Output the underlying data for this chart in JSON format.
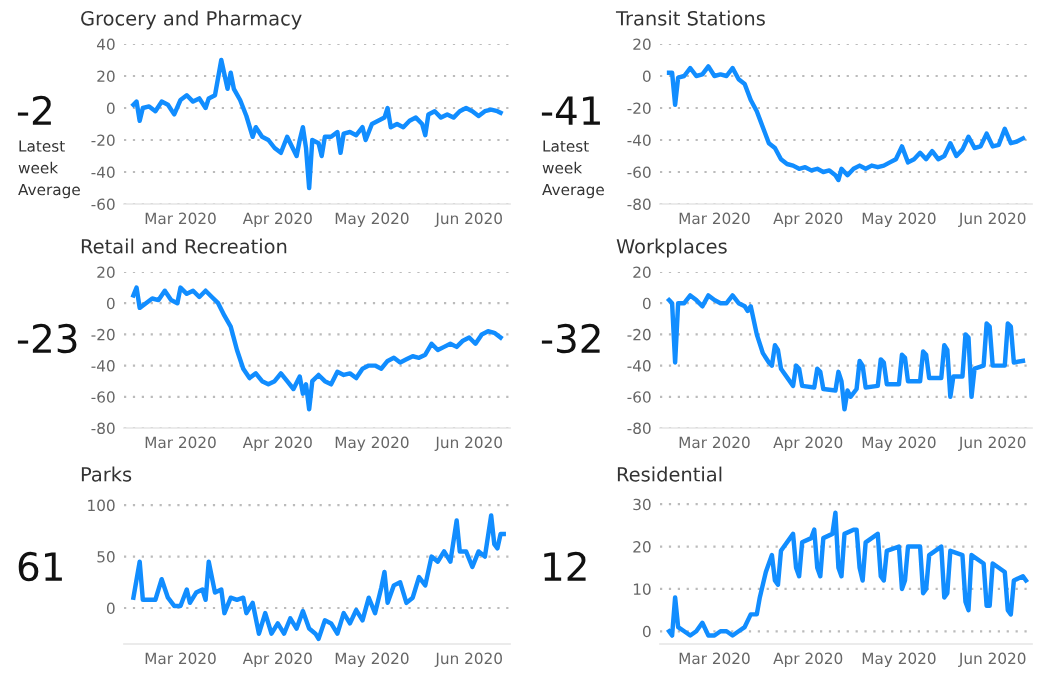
{
  "chart_data": [
    {
      "type": "line",
      "title": "Grocery and Pharmacy",
      "annotations": [
        "-2",
        "Latest week Average"
      ],
      "grid": "y",
      "legend": false,
      "marker": "none",
      "line_style": "solid",
      "xlim": [
        "2020-02-12",
        "2020-06-14"
      ],
      "xticks": [
        {
          "value": "2020-03-01",
          "label": "Mar 2020"
        },
        {
          "value": "2020-04-01",
          "label": "Apr 2020"
        },
        {
          "value": "2020-05-01",
          "label": "May 2020"
        },
        {
          "value": "2020-06-01",
          "label": "Jun 2020"
        }
      ],
      "ylim": [
        -60,
        40
      ],
      "yticks": [
        -60,
        -40,
        -20,
        0,
        20,
        40
      ],
      "series": [
        {
          "color": "#118dff",
          "x": [
            "2020-02-15",
            "2020-02-16",
            "2020-02-17",
            "2020-02-18",
            "2020-02-20",
            "2020-02-22",
            "2020-02-24",
            "2020-02-26",
            "2020-02-28",
            "2020-03-01",
            "2020-03-03",
            "2020-03-05",
            "2020-03-07",
            "2020-03-09",
            "2020-03-10",
            "2020-03-12",
            "2020-03-14",
            "2020-03-16",
            "2020-03-17",
            "2020-03-18",
            "2020-03-20",
            "2020-03-22",
            "2020-03-24",
            "2020-03-25",
            "2020-03-27",
            "2020-03-29",
            "2020-03-31",
            "2020-04-02",
            "2020-04-04",
            "2020-04-05",
            "2020-04-07",
            "2020-04-08",
            "2020-04-09",
            "2020-04-10",
            "2020-04-11",
            "2020-04-12",
            "2020-04-14",
            "2020-04-15",
            "2020-04-16",
            "2020-04-18",
            "2020-04-20",
            "2020-04-21",
            "2020-04-22",
            "2020-04-24",
            "2020-04-26",
            "2020-04-28",
            "2020-04-29",
            "2020-05-01",
            "2020-05-03",
            "2020-05-05",
            "2020-05-06",
            "2020-05-07",
            "2020-05-09",
            "2020-05-11",
            "2020-05-13",
            "2020-05-15",
            "2020-05-17",
            "2020-05-18",
            "2020-05-19",
            "2020-05-21",
            "2020-05-23",
            "2020-05-25",
            "2020-05-27",
            "2020-05-29",
            "2020-05-31",
            "2020-06-02",
            "2020-06-04",
            "2020-06-06",
            "2020-06-08",
            "2020-06-10",
            "2020-06-11"
          ],
          "values": [
            2,
            4,
            -8,
            0,
            1,
            -2,
            4,
            2,
            -4,
            5,
            8,
            4,
            6,
            0,
            6,
            8,
            30,
            12,
            22,
            12,
            5,
            -5,
            -18,
            -12,
            -18,
            -20,
            -25,
            -28,
            -18,
            -22,
            -30,
            -20,
            -12,
            -25,
            -50,
            -20,
            -22,
            -30,
            -18,
            -18,
            -15,
            -28,
            -16,
            -15,
            -17,
            -12,
            -20,
            -10,
            -8,
            -6,
            0,
            -12,
            -10,
            -12,
            -8,
            -6,
            -10,
            -17,
            -4,
            -2,
            -6,
            -4,
            -6,
            -2,
            0,
            -2,
            -5,
            -2,
            -1,
            -2,
            -3
          ]
        }
      ]
    },
    {
      "type": "line",
      "title": "Transit Stations",
      "annotations": [
        "-41",
        "Latest week Average"
      ],
      "grid": "y",
      "legend": false,
      "marker": "none",
      "line_style": "solid",
      "xlim": [
        "2020-02-12",
        "2020-06-14"
      ],
      "xticks": [
        {
          "value": "2020-03-01",
          "label": "Mar 2020"
        },
        {
          "value": "2020-04-01",
          "label": "Apr 2020"
        },
        {
          "value": "2020-05-01",
          "label": "May 2020"
        },
        {
          "value": "2020-06-01",
          "label": "Jun 2020"
        }
      ],
      "ylim": [
        -80,
        20
      ],
      "yticks": [
        -80,
        -60,
        -40,
        -20,
        0,
        20
      ],
      "series": [
        {
          "color": "#118dff",
          "x": [
            "2020-02-15",
            "2020-02-16",
            "2020-02-17",
            "2020-02-18",
            "2020-02-20",
            "2020-02-22",
            "2020-02-24",
            "2020-02-26",
            "2020-02-28",
            "2020-03-01",
            "2020-03-03",
            "2020-03-05",
            "2020-03-07",
            "2020-03-09",
            "2020-03-11",
            "2020-03-13",
            "2020-03-15",
            "2020-03-17",
            "2020-03-19",
            "2020-03-21",
            "2020-03-23",
            "2020-03-25",
            "2020-03-27",
            "2020-03-29",
            "2020-03-31",
            "2020-04-02",
            "2020-04-04",
            "2020-04-06",
            "2020-04-08",
            "2020-04-10",
            "2020-04-11",
            "2020-04-12",
            "2020-04-14",
            "2020-04-16",
            "2020-04-18",
            "2020-04-20",
            "2020-04-22",
            "2020-04-24",
            "2020-04-26",
            "2020-04-28",
            "2020-04-30",
            "2020-05-02",
            "2020-05-04",
            "2020-05-06",
            "2020-05-08",
            "2020-05-10",
            "2020-05-12",
            "2020-05-14",
            "2020-05-16",
            "2020-05-18",
            "2020-05-20",
            "2020-05-22",
            "2020-05-24",
            "2020-05-26",
            "2020-05-28",
            "2020-05-30",
            "2020-06-01",
            "2020-06-03",
            "2020-06-05",
            "2020-06-07",
            "2020-06-09",
            "2020-06-11"
          ],
          "values": [
            2,
            2,
            -18,
            -1,
            0,
            5,
            0,
            1,
            6,
            0,
            1,
            0,
            5,
            -2,
            -5,
            -15,
            -22,
            -32,
            -42,
            -45,
            -52,
            -55,
            -56,
            -58,
            -57,
            -59,
            -58,
            -60,
            -59,
            -62,
            -65,
            -58,
            -62,
            -58,
            -56,
            -58,
            -56,
            -57,
            -56,
            -54,
            -52,
            -44,
            -54,
            -52,
            -48,
            -52,
            -47,
            -52,
            -50,
            -42,
            -50,
            -46,
            -38,
            -45,
            -44,
            -36,
            -44,
            -43,
            -33,
            -42,
            -41,
            -39
          ]
        }
      ]
    },
    {
      "type": "line",
      "title": "Retail and Recreation",
      "annotations": [
        "-23"
      ],
      "grid": "y",
      "legend": false,
      "marker": "none",
      "line_style": "solid",
      "xlim": [
        "2020-02-12",
        "2020-06-14"
      ],
      "xticks": [
        {
          "value": "2020-03-01",
          "label": "Mar 2020"
        },
        {
          "value": "2020-04-01",
          "label": "Apr 2020"
        },
        {
          "value": "2020-05-01",
          "label": "May 2020"
        },
        {
          "value": "2020-06-01",
          "label": "Jun 2020"
        }
      ],
      "ylim": [
        -80,
        20
      ],
      "yticks": [
        -80,
        -60,
        -40,
        -20,
        0,
        20
      ],
      "series": [
        {
          "color": "#118dff",
          "x": [
            "2020-02-15",
            "2020-02-16",
            "2020-02-17",
            "2020-02-19",
            "2020-02-21",
            "2020-02-23",
            "2020-02-25",
            "2020-02-27",
            "2020-02-29",
            "2020-03-01",
            "2020-03-03",
            "2020-03-05",
            "2020-03-07",
            "2020-03-09",
            "2020-03-11",
            "2020-03-13",
            "2020-03-15",
            "2020-03-17",
            "2020-03-19",
            "2020-03-21",
            "2020-03-23",
            "2020-03-25",
            "2020-03-27",
            "2020-03-29",
            "2020-03-31",
            "2020-04-02",
            "2020-04-04",
            "2020-04-06",
            "2020-04-08",
            "2020-04-09",
            "2020-04-10",
            "2020-04-11",
            "2020-04-12",
            "2020-04-14",
            "2020-04-16",
            "2020-04-18",
            "2020-04-20",
            "2020-04-22",
            "2020-04-24",
            "2020-04-26",
            "2020-04-28",
            "2020-04-30",
            "2020-05-02",
            "2020-05-04",
            "2020-05-06",
            "2020-05-08",
            "2020-05-10",
            "2020-05-12",
            "2020-05-14",
            "2020-05-16",
            "2020-05-18",
            "2020-05-20",
            "2020-05-22",
            "2020-05-24",
            "2020-05-26",
            "2020-05-28",
            "2020-05-30",
            "2020-06-01",
            "2020-06-03",
            "2020-06-05",
            "2020-06-07",
            "2020-06-09",
            "2020-06-11"
          ],
          "values": [
            5,
            10,
            -3,
            0,
            3,
            2,
            8,
            2,
            0,
            10,
            6,
            8,
            4,
            8,
            4,
            0,
            -8,
            -15,
            -30,
            -42,
            -48,
            -45,
            -50,
            -52,
            -50,
            -45,
            -50,
            -55,
            -47,
            -58,
            -52,
            -68,
            -50,
            -46,
            -50,
            -52,
            -44,
            -46,
            -45,
            -48,
            -42,
            -40,
            -40,
            -42,
            -37,
            -35,
            -38,
            -36,
            -34,
            -35,
            -33,
            -26,
            -30,
            -28,
            -26,
            -28,
            -24,
            -22,
            -26,
            -20,
            -18,
            -19,
            -22
          ]
        }
      ]
    },
    {
      "type": "line",
      "title": "Workplaces",
      "annotations": [
        "-32"
      ],
      "grid": "y",
      "legend": false,
      "marker": "none",
      "line_style": "solid",
      "xlim": [
        "2020-02-12",
        "2020-06-14"
      ],
      "xticks": [
        {
          "value": "2020-03-01",
          "label": "Mar 2020"
        },
        {
          "value": "2020-04-01",
          "label": "Apr 2020"
        },
        {
          "value": "2020-05-01",
          "label": "May 2020"
        },
        {
          "value": "2020-06-01",
          "label": "Jun 2020"
        }
      ],
      "ylim": [
        -80,
        20
      ],
      "yticks": [
        -80,
        -60,
        -40,
        -20,
        0,
        20
      ],
      "series": [
        {
          "color": "#118dff",
          "x": [
            "2020-02-15",
            "2020-02-16",
            "2020-02-17",
            "2020-02-18",
            "2020-02-20",
            "2020-02-22",
            "2020-02-24",
            "2020-02-26",
            "2020-02-28",
            "2020-03-01",
            "2020-03-03",
            "2020-03-05",
            "2020-03-07",
            "2020-03-09",
            "2020-03-11",
            "2020-03-12",
            "2020-03-13",
            "2020-03-15",
            "2020-03-17",
            "2020-03-19",
            "2020-03-20",
            "2020-03-21",
            "2020-03-22",
            "2020-03-23",
            "2020-03-27",
            "2020-03-28",
            "2020-03-29",
            "2020-03-30",
            "2020-04-03",
            "2020-04-04",
            "2020-04-05",
            "2020-04-06",
            "2020-04-10",
            "2020-04-11",
            "2020-04-12",
            "2020-04-13",
            "2020-04-14",
            "2020-04-15",
            "2020-04-17",
            "2020-04-18",
            "2020-04-19",
            "2020-04-20",
            "2020-04-24",
            "2020-04-25",
            "2020-04-26",
            "2020-04-27",
            "2020-05-01",
            "2020-05-02",
            "2020-05-03",
            "2020-05-04",
            "2020-05-08",
            "2020-05-09",
            "2020-05-10",
            "2020-05-11",
            "2020-05-15",
            "2020-05-16",
            "2020-05-17",
            "2020-05-18",
            "2020-05-19",
            "2020-05-22",
            "2020-05-23",
            "2020-05-24",
            "2020-05-25",
            "2020-05-26",
            "2020-05-29",
            "2020-05-30",
            "2020-05-31",
            "2020-06-01",
            "2020-06-05",
            "2020-06-06",
            "2020-06-07",
            "2020-06-08",
            "2020-06-11"
          ],
          "values": [
            2,
            0,
            -38,
            0,
            0,
            5,
            2,
            -2,
            5,
            2,
            0,
            0,
            5,
            0,
            -2,
            -5,
            -2,
            -20,
            -32,
            -38,
            -40,
            -27,
            -30,
            -42,
            -53,
            -40,
            -42,
            -53,
            -54,
            -42,
            -44,
            -55,
            -56,
            -44,
            -50,
            -68,
            -56,
            -60,
            -55,
            -37,
            -40,
            -54,
            -53,
            -36,
            -38,
            -52,
            -52,
            -33,
            -35,
            -50,
            -50,
            -31,
            -33,
            -48,
            -48,
            -27,
            -30,
            -60,
            -47,
            -47,
            -20,
            -22,
            -60,
            -42,
            -40,
            -13,
            -15,
            -40,
            -40,
            -13,
            -15,
            -38,
            -37
          ]
        }
      ]
    },
    {
      "type": "line",
      "title": "Parks",
      "annotations": [
        "61"
      ],
      "grid": "y",
      "legend": false,
      "marker": "none",
      "line_style": "solid",
      "xlim": [
        "2020-02-12",
        "2020-06-14"
      ],
      "xticks": [
        {
          "value": "2020-03-01",
          "label": "Mar 2020"
        },
        {
          "value": "2020-04-01",
          "label": "Apr 2020"
        },
        {
          "value": "2020-05-01",
          "label": "May 2020"
        },
        {
          "value": "2020-06-01",
          "label": "Jun 2020"
        }
      ],
      "ylim": [
        -35,
        105
      ],
      "yticks": [
        0,
        50,
        100
      ],
      "series": [
        {
          "color": "#118dff",
          "x": [
            "2020-02-15",
            "2020-02-17",
            "2020-02-18",
            "2020-02-20",
            "2020-02-22",
            "2020-02-24",
            "2020-02-26",
            "2020-02-28",
            "2020-03-01",
            "2020-03-03",
            "2020-03-04",
            "2020-03-06",
            "2020-03-08",
            "2020-03-09",
            "2020-03-10",
            "2020-03-12",
            "2020-03-14",
            "2020-03-15",
            "2020-03-17",
            "2020-03-19",
            "2020-03-21",
            "2020-03-22",
            "2020-03-24",
            "2020-03-26",
            "2020-03-28",
            "2020-03-30",
            "2020-04-01",
            "2020-04-03",
            "2020-04-05",
            "2020-04-07",
            "2020-04-09",
            "2020-04-11",
            "2020-04-13",
            "2020-04-14",
            "2020-04-16",
            "2020-04-18",
            "2020-04-20",
            "2020-04-22",
            "2020-04-24",
            "2020-04-26",
            "2020-04-28",
            "2020-04-30",
            "2020-05-02",
            "2020-05-04",
            "2020-05-05",
            "2020-05-06",
            "2020-05-08",
            "2020-05-10",
            "2020-05-12",
            "2020-05-14",
            "2020-05-16",
            "2020-05-18",
            "2020-05-20",
            "2020-05-22",
            "2020-05-24",
            "2020-05-26",
            "2020-05-28",
            "2020-05-29",
            "2020-05-31",
            "2020-06-02",
            "2020-06-04",
            "2020-06-06",
            "2020-06-07",
            "2020-06-08",
            "2020-06-09",
            "2020-06-10",
            "2020-06-11",
            "2020-06-12"
          ],
          "values": [
            10,
            45,
            8,
            8,
            8,
            28,
            10,
            2,
            2,
            18,
            5,
            15,
            18,
            8,
            45,
            15,
            18,
            -5,
            10,
            8,
            10,
            -5,
            5,
            -25,
            -5,
            -25,
            -15,
            -25,
            -10,
            -20,
            -3,
            -20,
            -25,
            -30,
            -12,
            -15,
            -25,
            -5,
            -15,
            -2,
            -12,
            10,
            -5,
            20,
            35,
            5,
            22,
            25,
            5,
            10,
            30,
            22,
            50,
            45,
            55,
            45,
            85,
            55,
            55,
            40,
            55,
            50,
            70,
            90,
            62,
            58,
            72,
            72
          ]
        }
      ]
    },
    {
      "type": "line",
      "title": "Residential",
      "annotations": [
        "12"
      ],
      "grid": "y",
      "legend": false,
      "marker": "none",
      "line_style": "solid",
      "xlim": [
        "2020-02-12",
        "2020-06-14"
      ],
      "xticks": [
        {
          "value": "2020-03-01",
          "label": "Mar 2020"
        },
        {
          "value": "2020-04-01",
          "label": "Apr 2020"
        },
        {
          "value": "2020-05-01",
          "label": "May 2020"
        },
        {
          "value": "2020-06-01",
          "label": "Jun 2020"
        }
      ],
      "ylim": [
        -3,
        31
      ],
      "yticks": [
        0,
        10,
        20,
        30
      ],
      "series": [
        {
          "color": "#118dff",
          "x": [
            "2020-02-15",
            "2020-02-16",
            "2020-02-17",
            "2020-02-18",
            "2020-02-20",
            "2020-02-22",
            "2020-02-24",
            "2020-02-26",
            "2020-02-28",
            "2020-03-01",
            "2020-03-03",
            "2020-03-05",
            "2020-03-07",
            "2020-03-09",
            "2020-03-11",
            "2020-03-13",
            "2020-03-15",
            "2020-03-16",
            "2020-03-18",
            "2020-03-20",
            "2020-03-21",
            "2020-03-22",
            "2020-03-23",
            "2020-03-26",
            "2020-03-27",
            "2020-03-28",
            "2020-03-29",
            "2020-03-30",
            "2020-04-02",
            "2020-04-03",
            "2020-04-04",
            "2020-04-05",
            "2020-04-06",
            "2020-04-09",
            "2020-04-10",
            "2020-04-11",
            "2020-04-12",
            "2020-04-13",
            "2020-04-16",
            "2020-04-17",
            "2020-04-18",
            "2020-04-19",
            "2020-04-20",
            "2020-04-24",
            "2020-04-25",
            "2020-04-26",
            "2020-04-27",
            "2020-05-01",
            "2020-05-02",
            "2020-05-03",
            "2020-05-04",
            "2020-05-08",
            "2020-05-09",
            "2020-05-10",
            "2020-05-11",
            "2020-05-15",
            "2020-05-16",
            "2020-05-17",
            "2020-05-18",
            "2020-05-22",
            "2020-05-23",
            "2020-05-24",
            "2020-05-25",
            "2020-05-29",
            "2020-05-30",
            "2020-05-31",
            "2020-06-01",
            "2020-06-05",
            "2020-06-06",
            "2020-06-07",
            "2020-06-08",
            "2020-06-11",
            "2020-06-12"
          ],
          "values": [
            0,
            -1,
            8,
            1,
            0,
            -1,
            0,
            2,
            -1,
            -1,
            0,
            0,
            -1,
            0,
            1,
            4,
            4,
            8,
            14,
            18,
            12,
            11,
            19,
            22,
            23,
            15,
            13,
            21,
            22,
            24,
            15,
            13,
            22,
            23,
            28,
            15,
            13,
            23,
            24,
            24,
            15,
            12,
            21,
            23,
            13,
            12,
            19,
            20,
            10,
            12,
            20,
            20,
            9,
            10,
            18,
            20,
            8,
            9,
            19,
            18,
            7,
            5,
            18,
            16,
            6,
            6,
            16,
            14,
            5,
            4,
            12,
            13,
            12
          ]
        }
      ]
    }
  ]
}
